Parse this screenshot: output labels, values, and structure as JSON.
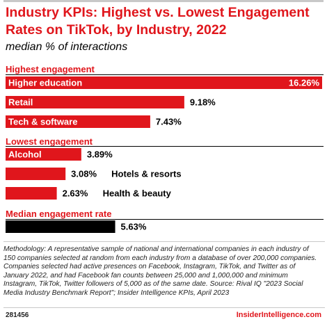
{
  "title": "Industry KPIs: Highest vs. Lowest Engagement Rates on TikTok, by Industry, 2022",
  "subtitle": "median % of interactions",
  "sections": {
    "highest": "Highest engagement",
    "lowest": "Lowest engagement",
    "median": "Median engagement rate"
  },
  "chart_data": {
    "type": "bar",
    "orientation": "horizontal",
    "title": "Industry KPIs: Highest vs. Lowest Engagement Rates on TikTok, by Industry, 2022",
    "subtitle": "median % of interactions",
    "categories": [
      "Higher education",
      "Retail",
      "Tech & software",
      "Alcohol",
      "Hotels & resorts",
      "Health & beauty",
      ""
    ],
    "values": [
      16.26,
      9.18,
      7.43,
      3.89,
      3.08,
      2.63,
      5.63
    ],
    "value_labels": [
      "16.26%",
      "9.18%",
      "7.43%",
      "3.89%",
      "3.08%",
      "2.63%",
      "5.63%"
    ],
    "groups": [
      "Highest engagement",
      "Highest engagement",
      "Highest engagement",
      "Lowest engagement",
      "Lowest engagement",
      "Lowest engagement",
      "Median engagement rate"
    ],
    "colors": [
      "#e0161c",
      "#e0161c",
      "#e0161c",
      "#e0161c",
      "#e0161c",
      "#e0161c",
      "#000000"
    ],
    "xlim": [
      0,
      16.26
    ],
    "grid": false
  },
  "methodology": "Methodology: A representative sample of national and international companies in each industry of 150 companies selected at random from each industry from a database of over 200,000 companies. Companies selected had active presences on Facebook, Instagram, TikTok, and Twitter as of January 2022, and had Facebook fan counts between 25,000 and 1,000,000 and minimum Instagram, TikTok, Twitter followers of 5,000 as of the same date. Source: Rival IQ \"2023 Social Media Industry Benchmark Report\"; Insider Intelligence KPIs, April 2023",
  "chart_id": "281456",
  "brand": "InsiderIntelligence.com"
}
